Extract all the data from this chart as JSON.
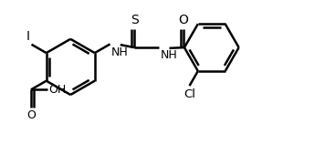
{
  "background": "#ffffff",
  "line_color": "#000000",
  "line_width": 1.8,
  "figsize": [
    3.56,
    1.58
  ],
  "dpi": 100,
  "xlim": [
    0,
    9.5
  ],
  "ylim": [
    0,
    4.0
  ]
}
